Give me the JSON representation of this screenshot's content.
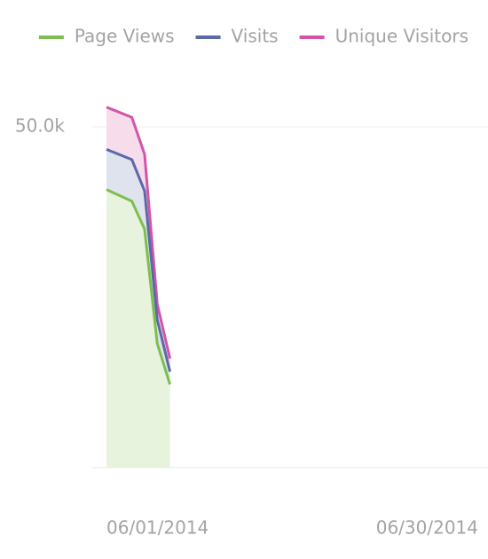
{
  "chart_data": {
    "type": "area",
    "x": [
      "06/01/2014",
      "06/03/2014",
      "06/04/2014",
      "06/05/2014",
      "06/06/2014"
    ],
    "series": [
      {
        "name": "Page Views",
        "color": "#7dbf4f",
        "fill": "#e7f3dd",
        "values": [
          40800,
          39100,
          35000,
          18200,
          12200
        ]
      },
      {
        "name": "Visits",
        "color": "#5a6aa9",
        "fill": "#dfe3ee",
        "values": [
          46700,
          45200,
          40600,
          21700,
          14100
        ]
      },
      {
        "name": "Unique Visitors",
        "color": "#d354a8",
        "fill": "#f7dcec",
        "values": [
          52900,
          51400,
          46000,
          24000,
          16000
        ]
      }
    ],
    "xlim": [
      "06/01/2014",
      "06/30/2014"
    ],
    "xticks": [
      "06/01/2014",
      "06/30/2014"
    ],
    "ylim": [
      0,
      55000
    ],
    "yticks": [
      {
        "value": 50000,
        "label": "50.0k"
      }
    ],
    "grid": true,
    "legend": "top"
  }
}
